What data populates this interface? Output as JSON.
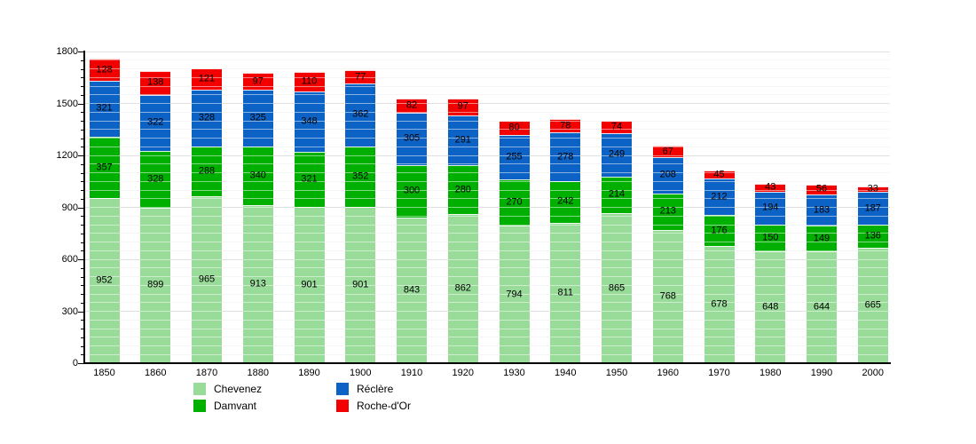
{
  "chart_data": {
    "type": "bar",
    "stacked": true,
    "title": "",
    "xlabel": "",
    "ylabel": "",
    "ylim": [
      0,
      1800
    ],
    "y_major_step": 300,
    "y_minor_step": 50,
    "grid": true,
    "legend_position": "bottom",
    "categories": [
      "1850",
      "1860",
      "1870",
      "1880",
      "1890",
      "1900",
      "1910",
      "1920",
      "1930",
      "1940",
      "1950",
      "1960",
      "1970",
      "1980",
      "1990",
      "2000"
    ],
    "series": [
      {
        "name": "Chevenez",
        "color": "#99DB99",
        "values": [
          952,
          899,
          965,
          913,
          901,
          901,
          843,
          862,
          794,
          811,
          865,
          768,
          678,
          648,
          644,
          665
        ]
      },
      {
        "name": "Damvant",
        "color": "#00B000",
        "values": [
          357,
          328,
          288,
          340,
          321,
          352,
          300,
          280,
          270,
          242,
          214,
          213,
          176,
          150,
          149,
          136
        ]
      },
      {
        "name": "Réclère",
        "color": "#0D63C5",
        "values": [
          321,
          322,
          328,
          325,
          348,
          362,
          305,
          291,
          255,
          278,
          249,
          208,
          212,
          194,
          183,
          187
        ]
      },
      {
        "name": "Roche-d'Or",
        "color": "#F30000",
        "values": [
          128,
          138,
          121,
          97,
          110,
          77,
          82,
          97,
          80,
          78,
          74,
          67,
          45,
          43,
          56,
          33
        ]
      }
    ],
    "y_tick_labels": [
      "0",
      "300",
      "600",
      "900",
      "1200",
      "1500",
      "1800"
    ]
  }
}
